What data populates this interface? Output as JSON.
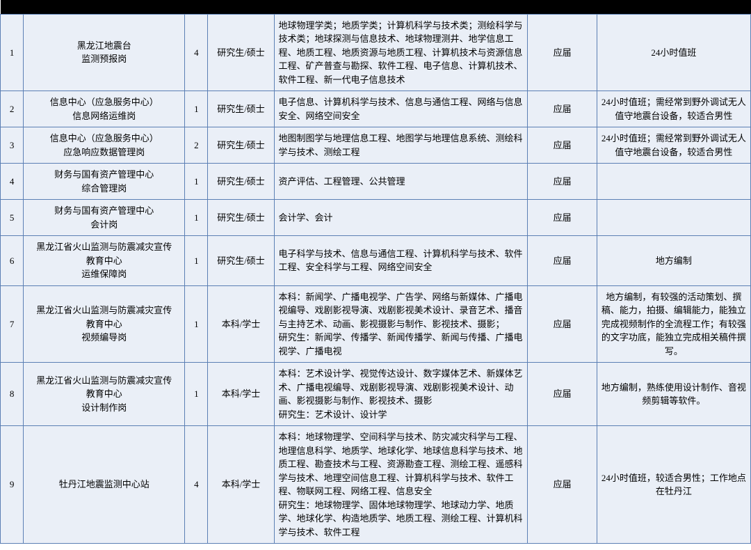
{
  "rows": [
    {
      "idx": "1",
      "unit_lines": [
        "黑龙江地震台",
        "监测预报岗"
      ],
      "count": "4",
      "edu": "研究生/硕士",
      "major": "地球物理学类；地质学类；计算机科学与技术类；测绘科学与技术类；地球探测与信息技术、地球物理测井、地学信息工程、地质工程、地质资源与地质工程、计算机技术与资源信息工程、矿产普查与勘探、软件工程、电子信息、计算机技术、软件工程、新一代电子信息技术",
      "type": "应届",
      "note": "24小时值班"
    },
    {
      "idx": "2",
      "unit_lines": [
        "信息中心（应急服务中心）",
        "信息网络运维岗"
      ],
      "count": "1",
      "edu": "研究生/硕士",
      "major": "电子信息、计算机科学与技术、信息与通信工程、网络与信息安全、网络空间安全",
      "type": "应届",
      "note": "24小时值班；需经常到野外调试无人值守地震台设备，较适合男性"
    },
    {
      "idx": "3",
      "unit_lines": [
        "信息中心（应急服务中心）",
        "应急响应数据管理岗"
      ],
      "count": "2",
      "edu": "研究生/硕士",
      "major": "地图制图学与地理信息工程、地图学与地理信息系统、测绘科学与技术、测绘工程",
      "type": "应届",
      "note": "24小时值班；需经常到野外调试无人值守地震台设备，较适合男性"
    },
    {
      "idx": "4",
      "unit_lines": [
        "财务与国有资产管理中心",
        "综合管理岗"
      ],
      "count": "1",
      "edu": "研究生/硕士",
      "major": "资产评估、工程管理、公共管理",
      "type": "应届",
      "note": ""
    },
    {
      "idx": "5",
      "unit_lines": [
        "财务与国有资产管理中心",
        "会计岗"
      ],
      "count": "1",
      "edu": "研究生/硕士",
      "major": "会计学、会计",
      "type": "应届",
      "note": ""
    },
    {
      "idx": "6",
      "unit_lines": [
        "黑龙江省火山监测与防震减灾宣传",
        "教育中心",
        "运维保障岗"
      ],
      "count": "1",
      "edu": "研究生/硕士",
      "major": "电子科学与技术、信息与通信工程、计算机科学与技术、软件工程、安全科学与工程、网络空间安全",
      "type": "应届",
      "note": "地方编制"
    },
    {
      "idx": "7",
      "unit_lines": [
        "黑龙江省火山监测与防震减灾宣传",
        "教育中心",
        "视频编导岗"
      ],
      "count": "1",
      "edu": "本科/学士",
      "major": "本科：新闻学、广播电视学、广告学、网络与新媒体、广播电视编导、戏剧影视导演、戏剧影视美术设计、录音艺术、播音与主持艺术、动画、影视摄影与制作、影视技术、摄影；\n研究生：新闻学、传播学、新闻传播学、新闻与传播、广播电视学、广播电视",
      "type": "应届",
      "note": "地方编制，有较强的活动策划、撰稿、能力，拍摄、编辑能力，能独立完成视频制作的全流程工作；有较强的文字功底，能独立完成相关稿件撰写。"
    },
    {
      "idx": "8",
      "unit_lines": [
        "黑龙江省火山监测与防震减灾宣传",
        "教育中心",
        "设计制作岗"
      ],
      "count": "1",
      "edu": "本科/学士",
      "major": "本科：艺术设计学、视觉传达设计、数字媒体艺术、新媒体艺术、广播电视编导、戏剧影视导演、戏剧影视美术设计、动画、影视摄影与制作、影视技术、摄影\n研究生：艺术设计、设计学",
      "type": "应届",
      "note": "地方编制，熟练使用设计制作、音视频剪辑等软件。"
    },
    {
      "idx": "9",
      "unit_lines": [
        "牡丹江地震监测中心站"
      ],
      "count": "4",
      "edu": "本科/学士",
      "major": "本科：地球物理学、空间科学与技术、防灾减灾科学与工程、地理信息科学、地质学、地球化学、地球信息科学与技术、地质工程、勘查技术与工程、资源勘查工程、测绘工程、遥感科学与技术、地理空间信息工程、计算机科学与技术、软件工程、物联网工程、网络工程、信息安全\n研究生：地球物理学、固体地球物理学、地球动力学、地质学、地球化学、构造地质学、地质工程、测绘工程、计算机科学与技术、软件工程",
      "type": "应届",
      "note": "24小时值班，较适合男性；工作地点在牡丹江"
    }
  ]
}
